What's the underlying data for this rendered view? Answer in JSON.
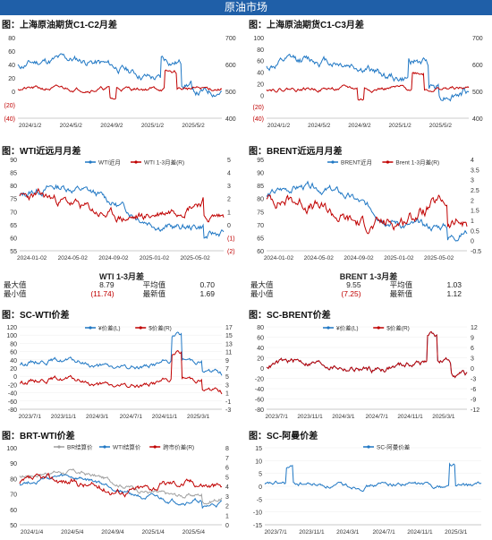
{
  "page_title": "原油市场",
  "colors": {
    "blue": "#1f77c4",
    "red": "#c00000",
    "gray": "#a0a0a0",
    "header": "#1f5fa8"
  },
  "charts": [
    {
      "id": "c1",
      "title": "图：上海原油期货C1-C2月差",
      "type": "line",
      "yleft": {
        "ticks": [
          "80",
          "60",
          "40",
          "20",
          "0",
          "(20)",
          "(40)"
        ],
        "min": -40,
        "max": 80
      },
      "yright": {
        "ticks": [
          "700",
          "600",
          "500",
          "400"
        ],
        "min": 400,
        "max": 700
      },
      "xticks": [
        "2024/1/2",
        "2024/5/2",
        "2024/9/2",
        "2025/1/2",
        "2025/5/2"
      ],
      "series": [
        {
          "name": "",
          "axis": "left",
          "color": "blue",
          "seed": 11,
          "base": 30,
          "amp": 25,
          "noise": 8,
          "shape": "c1blue"
        },
        {
          "name": "",
          "axis": "right",
          "color": "red",
          "seed": 21,
          "base": 510,
          "amp": 10,
          "noise": 10,
          "shape": "c1red"
        }
      ]
    },
    {
      "id": "c2",
      "title": "图：上海原油期货C1-C3月差",
      "type": "line",
      "yleft": {
        "ticks": [
          "100",
          "80",
          "60",
          "40",
          "20",
          "0",
          "(20)",
          "(40)"
        ],
        "min": -40,
        "max": 100
      },
      "yright": {
        "ticks": [
          "700",
          "600",
          "500",
          "400"
        ],
        "min": 400,
        "max": 700
      },
      "xticks": [
        "2024/1/2",
        "2024/5/2",
        "2024/9/2",
        "2025/1/2",
        "2025/5/2"
      ],
      "series": [
        {
          "name": "",
          "axis": "left",
          "color": "blue",
          "seed": 12,
          "base": 40,
          "amp": 30,
          "noise": 10,
          "shape": "c1blue"
        },
        {
          "name": "",
          "axis": "right",
          "color": "red",
          "seed": 22,
          "base": 510,
          "amp": 10,
          "noise": 10,
          "shape": "c1red"
        }
      ]
    },
    {
      "id": "c3",
      "title": "图：WTI近远月月差",
      "type": "line",
      "yleft": {
        "ticks": [
          "90",
          "85",
          "80",
          "75",
          "70",
          "65",
          "60",
          "55"
        ],
        "min": 55,
        "max": 90
      },
      "yright": {
        "ticks": [
          "5",
          "4",
          "3",
          "2",
          "1",
          "0",
          "(1)",
          "(2)"
        ],
        "min": -2,
        "max": 5
      },
      "xticks": [
        "2024-01-02",
        "2024-05-02",
        "2024-09-02",
        "2025-01-02",
        "2025-05-02"
      ],
      "series": [
        {
          "name": "WTI近月",
          "axis": "left",
          "color": "blue",
          "seed": 13,
          "base": 74,
          "amp": 8,
          "noise": 2,
          "shape": "wti"
        },
        {
          "name": "WTI 1-3月差(R)",
          "axis": "right",
          "color": "red",
          "seed": 23,
          "base": 1.3,
          "amp": 1,
          "noise": 0.5,
          "shape": "spread"
        }
      ]
    },
    {
      "id": "c4",
      "title": "图：BRENT近远月月差",
      "type": "line",
      "yleft": {
        "ticks": [
          "95",
          "90",
          "85",
          "80",
          "75",
          "70",
          "65",
          "60"
        ],
        "min": 60,
        "max": 95
      },
      "yright": {
        "ticks": [
          "4",
          "3.5",
          "3",
          "2.5",
          "2",
          "1.5",
          "1",
          "0.5",
          "0",
          "-0.5"
        ],
        "min": -0.5,
        "max": 4
      },
      "xticks": [
        "2024-01-02",
        "2024-05-02",
        "2024-09-02",
        "2025-01-02",
        "2025-05-02"
      ],
      "series": [
        {
          "name": "BRENT近月",
          "axis": "left",
          "color": "blue",
          "seed": 14,
          "base": 79,
          "amp": 8,
          "noise": 2,
          "shape": "wti"
        },
        {
          "name": "Brent 1-3月差(R)",
          "axis": "right",
          "color": "red",
          "seed": 24,
          "base": 1.4,
          "amp": 0.8,
          "noise": 0.4,
          "shape": "spread"
        }
      ]
    },
    {
      "id": "c5",
      "title": "图：SC-WTI价差",
      "type": "line",
      "yleft": {
        "ticks": [
          "120",
          "100",
          "80",
          "60",
          "40",
          "20",
          "0",
          "-20",
          "-40",
          "-60",
          "-80"
        ],
        "min": -80,
        "max": 120
      },
      "yright": {
        "ticks": [
          "17",
          "15",
          "13",
          "11",
          "9",
          "7",
          "5",
          "3",
          "1",
          "-1",
          "-3"
        ],
        "min": -3,
        "max": 17
      },
      "xticks": [
        "2023/7/1",
        "2023/11/1",
        "2024/3/1",
        "2024/7/1",
        "2024/11/1",
        "2025/3/1"
      ],
      "series": [
        {
          "name": "¥价差(L)",
          "axis": "left",
          "color": "blue",
          "seed": 15,
          "base": 30,
          "amp": 20,
          "noise": 8,
          "shape": "scwti"
        },
        {
          "name": "$价差(R)",
          "axis": "right",
          "color": "red",
          "seed": 15,
          "base": 30,
          "amp": 20,
          "noise": 8,
          "shape": "scwti",
          "scale": 0.1,
          "offset": 0.5
        }
      ]
    },
    {
      "id": "c6",
      "title": "图：SC-BRENT价差",
      "type": "line",
      "yleft": {
        "ticks": [
          "80",
          "60",
          "40",
          "20",
          "0",
          "-20",
          "-40",
          "-60",
          "-80"
        ],
        "min": -80,
        "max": 80
      },
      "yright": {
        "ticks": [
          "12",
          "9",
          "6",
          "3",
          "0",
          "-3",
          "-6",
          "-9",
          "-12"
        ],
        "min": -12,
        "max": 12
      },
      "xticks": [
        "2023/7/1",
        "2023/11/1",
        "2024/3/1",
        "2024/7/1",
        "2024/11/1",
        "2025/3/1"
      ],
      "series": [
        {
          "name": "¥价差(L)",
          "axis": "left",
          "color": "blue",
          "seed": 16,
          "base": 5,
          "amp": 15,
          "noise": 8,
          "shape": "scbrent"
        },
        {
          "name": "$价差(R)",
          "axis": "right",
          "color": "red",
          "seed": 16,
          "base": 5,
          "amp": 15,
          "noise": 8,
          "shape": "scbrent",
          "scale": 0.15,
          "offset": 0
        }
      ]
    },
    {
      "id": "c7",
      "title": "图：BRT-WTI价差",
      "type": "line",
      "yleft": {
        "ticks": [
          "100",
          "90",
          "80",
          "70",
          "60",
          "50"
        ],
        "min": 50,
        "max": 100
      },
      "yright": {
        "ticks": [
          "8",
          "7",
          "6",
          "5",
          "4",
          "3",
          "2",
          "1",
          "0"
        ],
        "min": 0,
        "max": 8
      },
      "xticks": [
        "2024/1/4",
        "2024/5/4",
        "2024/9/4",
        "2025/1/4",
        "2025/5/4"
      ],
      "series": [
        {
          "name": "BR结算价",
          "axis": "left",
          "color": "gray",
          "seed": 17,
          "base": 79,
          "amp": 8,
          "noise": 2,
          "shape": "wti"
        },
        {
          "name": "WTI结算价",
          "axis": "left",
          "color": "blue",
          "seed": 27,
          "base": 75,
          "amp": 8,
          "noise": 2,
          "shape": "wti"
        },
        {
          "name": "跨市价差(R)",
          "axis": "right",
          "color": "red",
          "seed": 37,
          "base": 4.2,
          "amp": 0.6,
          "noise": 0.5,
          "shape": "brtwti"
        }
      ]
    },
    {
      "id": "c8",
      "title": "图：SC-阿曼价差",
      "type": "line",
      "yleft": {
        "ticks": [
          "15",
          "10",
          "5",
          "0",
          "-5",
          "-10",
          "-15"
        ],
        "min": -15,
        "max": 15
      },
      "yright": null,
      "xticks": [
        "2023/7/1",
        "2023/11/1",
        "2024/3/1",
        "2024/7/1",
        "2024/11/1",
        "2025/3/1"
      ],
      "series": [
        {
          "name": "SC-阿曼价差",
          "axis": "left",
          "color": "blue",
          "seed": 18,
          "base": 0.5,
          "amp": 1.2,
          "noise": 1.2,
          "shape": "oman"
        }
      ]
    }
  ],
  "stats": [
    {
      "header": "WTI 1-3月差",
      "rows": [
        {
          "l1": "最大值",
          "v1": "8.79",
          "l2": "平均值",
          "v2": "0.70"
        },
        {
          "l1": "最小值",
          "v1": "(11.74)",
          "l2": "最新值",
          "v2": "1.69"
        }
      ]
    },
    {
      "header": "BRENT 1-3月差",
      "rows": [
        {
          "l1": "最大值",
          "v1": "9.55",
          "l2": "平均值",
          "v2": "1.03"
        },
        {
          "l1": "最小值",
          "v1": "(7.25)",
          "l2": "最新值",
          "v2": "1.12"
        }
      ]
    }
  ]
}
